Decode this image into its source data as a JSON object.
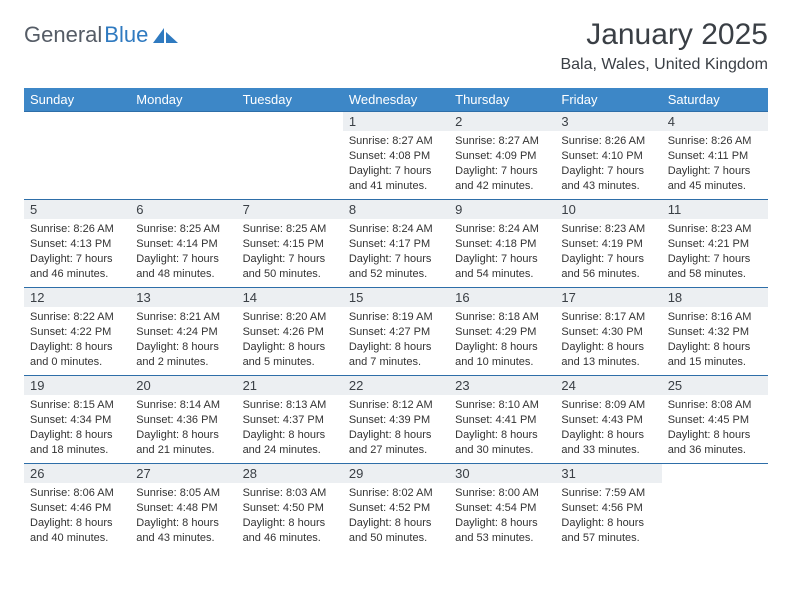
{
  "logo": {
    "text1": "General",
    "text2": "Blue"
  },
  "title": "January 2025",
  "subtitle": "Bala, Wales, United Kingdom",
  "colors": {
    "header_bg": "#3d87c7",
    "header_fg": "#ffffff",
    "daynum_bg": "#eceff2",
    "rule": "#2e6ea8",
    "logo_gray": "#555c66",
    "logo_blue": "#2f7ac0"
  },
  "dayNames": [
    "Sunday",
    "Monday",
    "Tuesday",
    "Wednesday",
    "Thursday",
    "Friday",
    "Saturday"
  ],
  "weeks": [
    [
      null,
      null,
      null,
      {
        "n": "1",
        "sunrise": "8:27 AM",
        "sunset": "4:08 PM",
        "dl_h": "7",
        "dl_m": "41"
      },
      {
        "n": "2",
        "sunrise": "8:27 AM",
        "sunset": "4:09 PM",
        "dl_h": "7",
        "dl_m": "42"
      },
      {
        "n": "3",
        "sunrise": "8:26 AM",
        "sunset": "4:10 PM",
        "dl_h": "7",
        "dl_m": "43"
      },
      {
        "n": "4",
        "sunrise": "8:26 AM",
        "sunset": "4:11 PM",
        "dl_h": "7",
        "dl_m": "45"
      }
    ],
    [
      {
        "n": "5",
        "sunrise": "8:26 AM",
        "sunset": "4:13 PM",
        "dl_h": "7",
        "dl_m": "46"
      },
      {
        "n": "6",
        "sunrise": "8:25 AM",
        "sunset": "4:14 PM",
        "dl_h": "7",
        "dl_m": "48"
      },
      {
        "n": "7",
        "sunrise": "8:25 AM",
        "sunset": "4:15 PM",
        "dl_h": "7",
        "dl_m": "50"
      },
      {
        "n": "8",
        "sunrise": "8:24 AM",
        "sunset": "4:17 PM",
        "dl_h": "7",
        "dl_m": "52"
      },
      {
        "n": "9",
        "sunrise": "8:24 AM",
        "sunset": "4:18 PM",
        "dl_h": "7",
        "dl_m": "54"
      },
      {
        "n": "10",
        "sunrise": "8:23 AM",
        "sunset": "4:19 PM",
        "dl_h": "7",
        "dl_m": "56"
      },
      {
        "n": "11",
        "sunrise": "8:23 AM",
        "sunset": "4:21 PM",
        "dl_h": "7",
        "dl_m": "58"
      }
    ],
    [
      {
        "n": "12",
        "sunrise": "8:22 AM",
        "sunset": "4:22 PM",
        "dl_h": "8",
        "dl_m": "0"
      },
      {
        "n": "13",
        "sunrise": "8:21 AM",
        "sunset": "4:24 PM",
        "dl_h": "8",
        "dl_m": "2"
      },
      {
        "n": "14",
        "sunrise": "8:20 AM",
        "sunset": "4:26 PM",
        "dl_h": "8",
        "dl_m": "5"
      },
      {
        "n": "15",
        "sunrise": "8:19 AM",
        "sunset": "4:27 PM",
        "dl_h": "8",
        "dl_m": "7"
      },
      {
        "n": "16",
        "sunrise": "8:18 AM",
        "sunset": "4:29 PM",
        "dl_h": "8",
        "dl_m": "10"
      },
      {
        "n": "17",
        "sunrise": "8:17 AM",
        "sunset": "4:30 PM",
        "dl_h": "8",
        "dl_m": "13"
      },
      {
        "n": "18",
        "sunrise": "8:16 AM",
        "sunset": "4:32 PM",
        "dl_h": "8",
        "dl_m": "15"
      }
    ],
    [
      {
        "n": "19",
        "sunrise": "8:15 AM",
        "sunset": "4:34 PM",
        "dl_h": "8",
        "dl_m": "18"
      },
      {
        "n": "20",
        "sunrise": "8:14 AM",
        "sunset": "4:36 PM",
        "dl_h": "8",
        "dl_m": "21"
      },
      {
        "n": "21",
        "sunrise": "8:13 AM",
        "sunset": "4:37 PM",
        "dl_h": "8",
        "dl_m": "24"
      },
      {
        "n": "22",
        "sunrise": "8:12 AM",
        "sunset": "4:39 PM",
        "dl_h": "8",
        "dl_m": "27"
      },
      {
        "n": "23",
        "sunrise": "8:10 AM",
        "sunset": "4:41 PM",
        "dl_h": "8",
        "dl_m": "30"
      },
      {
        "n": "24",
        "sunrise": "8:09 AM",
        "sunset": "4:43 PM",
        "dl_h": "8",
        "dl_m": "33"
      },
      {
        "n": "25",
        "sunrise": "8:08 AM",
        "sunset": "4:45 PM",
        "dl_h": "8",
        "dl_m": "36"
      }
    ],
    [
      {
        "n": "26",
        "sunrise": "8:06 AM",
        "sunset": "4:46 PM",
        "dl_h": "8",
        "dl_m": "40"
      },
      {
        "n": "27",
        "sunrise": "8:05 AM",
        "sunset": "4:48 PM",
        "dl_h": "8",
        "dl_m": "43"
      },
      {
        "n": "28",
        "sunrise": "8:03 AM",
        "sunset": "4:50 PM",
        "dl_h": "8",
        "dl_m": "46"
      },
      {
        "n": "29",
        "sunrise": "8:02 AM",
        "sunset": "4:52 PM",
        "dl_h": "8",
        "dl_m": "50"
      },
      {
        "n": "30",
        "sunrise": "8:00 AM",
        "sunset": "4:54 PM",
        "dl_h": "8",
        "dl_m": "53"
      },
      {
        "n": "31",
        "sunrise": "7:59 AM",
        "sunset": "4:56 PM",
        "dl_h": "8",
        "dl_m": "57"
      },
      null
    ]
  ]
}
